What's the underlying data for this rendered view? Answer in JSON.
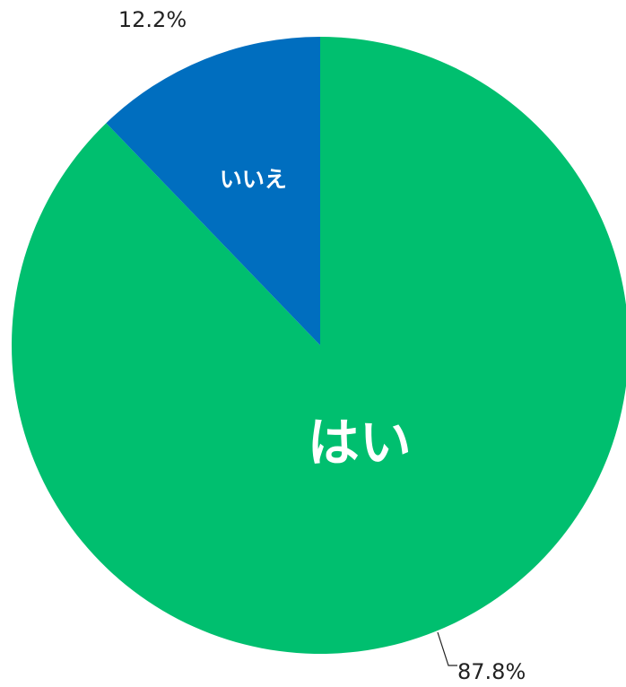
{
  "chart_data": {
    "type": "pie",
    "categories": [
      "はい",
      "いいえ"
    ],
    "values": [
      87.8,
      12.2
    ],
    "value_labels": [
      "87.8%",
      "12.2%"
    ],
    "colors": [
      "#00BF6F",
      "#006EBF"
    ],
    "start": "12 o'clock",
    "direction": "clockwise",
    "legend": "none",
    "title": ""
  }
}
